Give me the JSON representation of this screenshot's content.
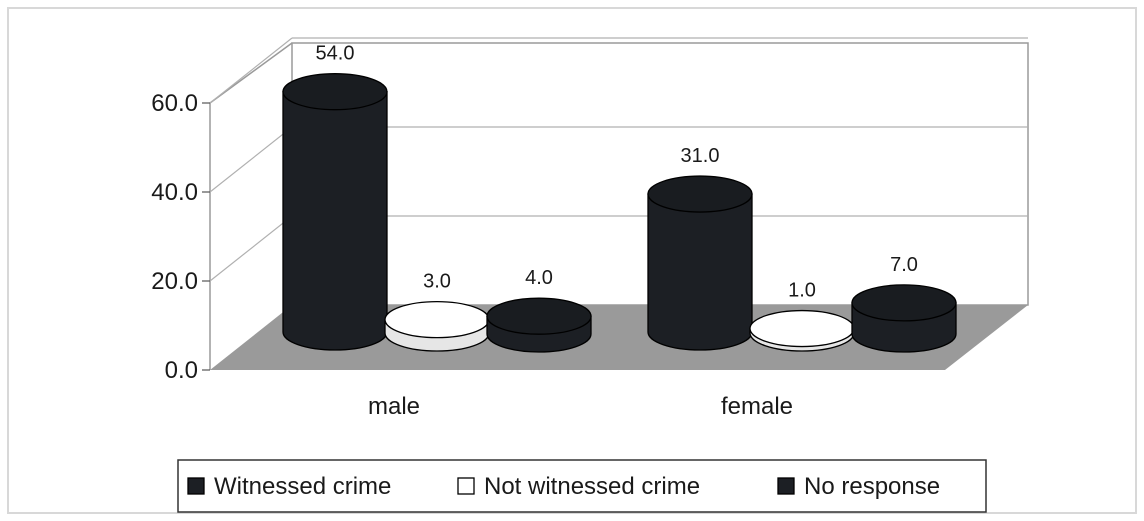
{
  "chart_data": {
    "type": "bar",
    "categories": [
      "male",
      "female"
    ],
    "series": [
      {
        "name": "Witnessed crime",
        "values": [
          54.0,
          31.0
        ],
        "color": "#1c1f24"
      },
      {
        "name": "Not witnessed crime",
        "values": [
          3.0,
          1.0
        ],
        "color": "#f2f2f2"
      },
      {
        "name": "No response",
        "values": [
          4.0,
          7.0
        ],
        "color": "#1c1f24"
      }
    ],
    "data_labels": [
      [
        "54.0",
        "31.0"
      ],
      [
        "3.0",
        "1.0"
      ],
      [
        "4.0",
        "7.0"
      ]
    ],
    "yticks": [
      "0.0",
      "20.0",
      "40.0",
      "60.0"
    ],
    "ylim": [
      0,
      60
    ],
    "title": "",
    "xlabel": "",
    "ylabel": "",
    "grid": true,
    "legend_position": "bottom",
    "floor_color": "#9a9a9a",
    "grid_color": "#b0b0b0"
  }
}
